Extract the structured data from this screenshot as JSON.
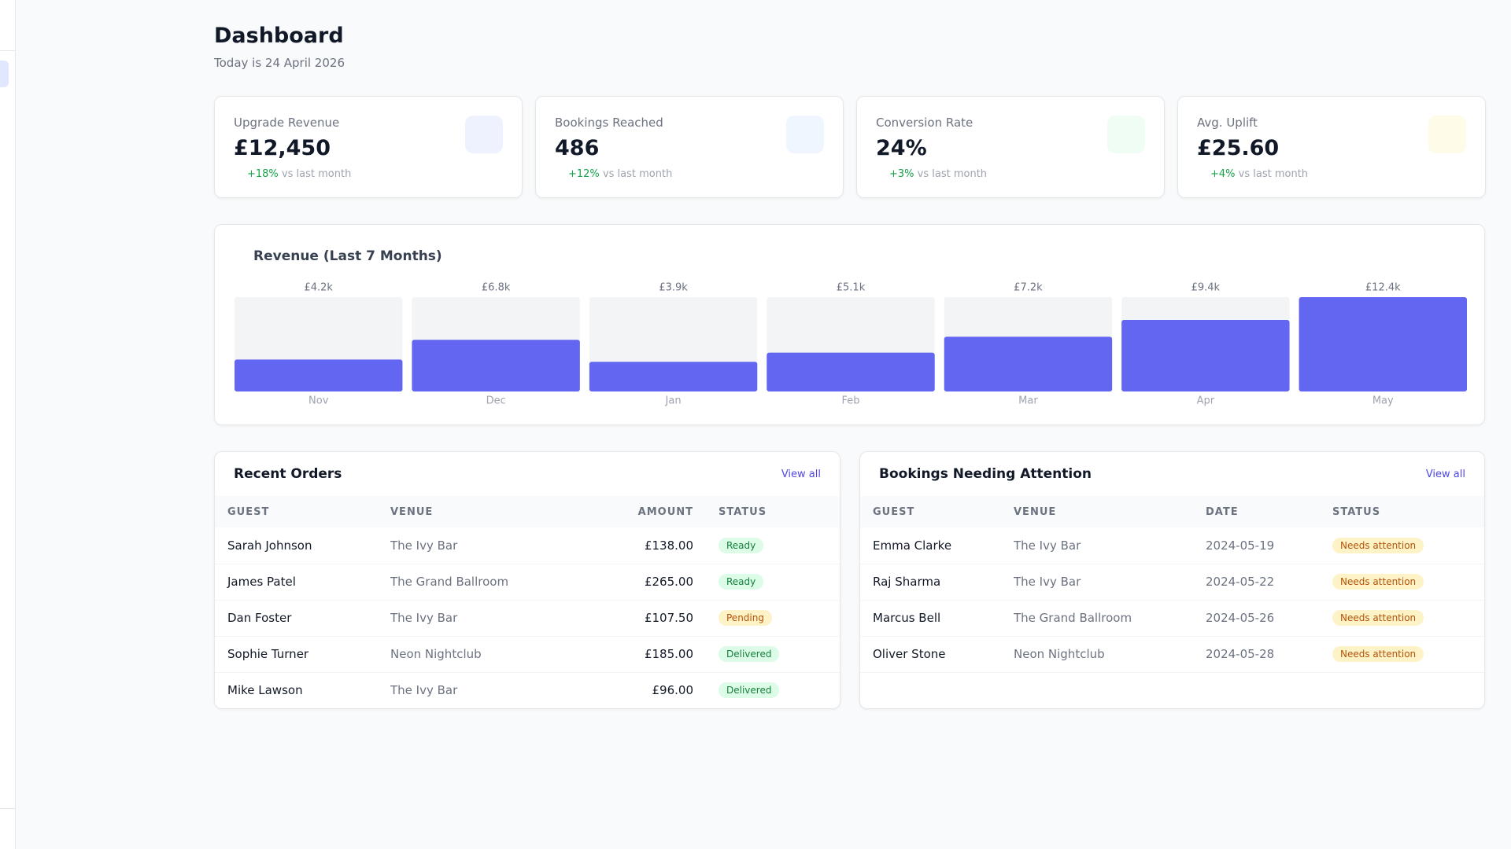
{
  "header": {
    "title": "Dashboard",
    "subtitle": "Today is 24 April 2026"
  },
  "stats": [
    {
      "label": "Upgrade Revenue",
      "value": "£12,450",
      "change": "+18%",
      "change_note": "vs last month",
      "icon_color": "#eef2ff"
    },
    {
      "label": "Bookings Reached",
      "value": "486",
      "change": "+12%",
      "change_note": "vs last month",
      "icon_color": "#eff6ff"
    },
    {
      "label": "Conversion Rate",
      "value": "24%",
      "change": "+3%",
      "change_note": "vs last month",
      "icon_color": "#f0fdf4"
    },
    {
      "label": "Avg. Uplift",
      "value": "£25.60",
      "change": "+4%",
      "change_note": "vs last month",
      "icon_color": "#fefce8"
    }
  ],
  "chart_data": {
    "type": "bar",
    "title": "Revenue (Last 7 Months)",
    "categories": [
      "Nov",
      "Dec",
      "Jan",
      "Feb",
      "Mar",
      "Apr",
      "May"
    ],
    "values": [
      4200,
      6800,
      3900,
      5100,
      7200,
      9400,
      12400
    ],
    "value_labels": [
      "£4.2k",
      "£6.8k",
      "£3.9k",
      "£5.1k",
      "£7.2k",
      "£9.4k",
      "£12.4k"
    ],
    "color": "#6366f1",
    "track_color": "#f3f4f6",
    "ylim": [
      0,
      12400
    ]
  },
  "recent_orders": {
    "title": "Recent Orders",
    "link": "View all",
    "columns": [
      "GUEST",
      "VENUE",
      "AMOUNT",
      "STATUS"
    ],
    "rows": [
      {
        "guest": "Sarah Johnson",
        "venue": "The Ivy Bar",
        "amount": "£138.00",
        "status": "Ready",
        "status_color": "green"
      },
      {
        "guest": "James Patel",
        "venue": "The Grand Ballroom",
        "amount": "£265.00",
        "status": "Ready",
        "status_color": "green"
      },
      {
        "guest": "Dan Foster",
        "venue": "The Ivy Bar",
        "amount": "£107.50",
        "status": "Pending",
        "status_color": "amber"
      },
      {
        "guest": "Sophie Turner",
        "venue": "Neon Nightclub",
        "amount": "£185.00",
        "status": "Delivered",
        "status_color": "green"
      },
      {
        "guest": "Mike Lawson",
        "venue": "The Ivy Bar",
        "amount": "£96.00",
        "status": "Delivered",
        "status_color": "green"
      }
    ]
  },
  "attention": {
    "title": "Bookings Needing Attention",
    "link": "View all",
    "columns": [
      "GUEST",
      "VENUE",
      "DATE",
      "STATUS"
    ],
    "rows": [
      {
        "guest": "Emma Clarke",
        "venue": "The Ivy Bar",
        "date": "2024-05-19",
        "status": "Needs attention",
        "status_color": "amber"
      },
      {
        "guest": "Raj Sharma",
        "venue": "The Ivy Bar",
        "date": "2024-05-22",
        "status": "Needs attention",
        "status_color": "amber"
      },
      {
        "guest": "Marcus Bell",
        "venue": "The Grand Ballroom",
        "date": "2024-05-26",
        "status": "Needs attention",
        "status_color": "amber"
      },
      {
        "guest": "Oliver Stone",
        "venue": "Neon Nightclub",
        "date": "2024-05-28",
        "status": "Needs attention",
        "status_color": "amber"
      }
    ]
  }
}
